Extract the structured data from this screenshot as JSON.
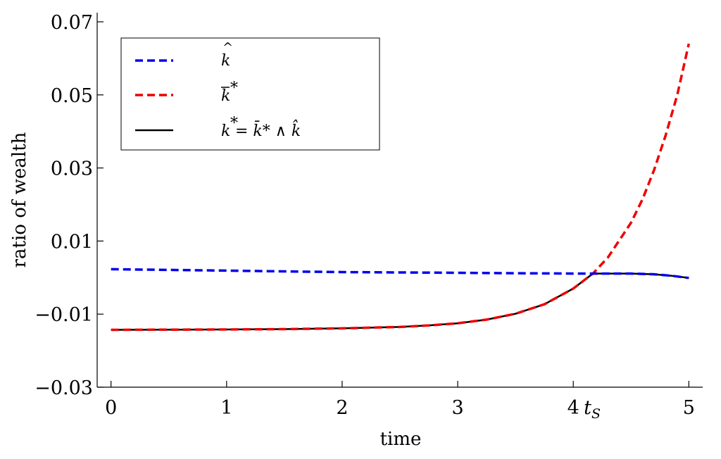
{
  "chart_data": {
    "type": "line",
    "title": "",
    "xlabel": "time",
    "ylabel": "ratio of  wealth",
    "xlim": [
      -0.12,
      5.12
    ],
    "ylim": [
      -0.03,
      0.0725
    ],
    "x_ticks": [
      0,
      1,
      2,
      3,
      4,
      5
    ],
    "x_tick_labels": [
      "0",
      "1",
      "2",
      "3",
      "4",
      "5"
    ],
    "y_ticks": [
      -0.03,
      -0.01,
      0.01,
      0.03,
      0.05,
      0.07
    ],
    "y_tick_labels": [
      "−0.03",
      "−0.01",
      "0.01",
      "0.03",
      "0.05",
      "0.07"
    ],
    "annotation": "t_S",
    "annotation_x": 4.17,
    "grid": false,
    "legend_position": "top-left",
    "series": [
      {
        "name": "k̂",
        "color": "#0000ee",
        "dash": "dashed",
        "x": [
          0,
          0.5,
          1,
          1.5,
          2,
          2.5,
          3,
          3.5,
          4,
          4.17,
          4.5,
          4.7,
          4.85,
          5
        ],
        "y": [
          0.0023,
          0.0021,
          0.0019,
          0.0017,
          0.0015,
          0.0014,
          0.0013,
          0.0012,
          0.0011,
          0.0011,
          0.0011,
          0.0009,
          0.0005,
          -0.0001
        ]
      },
      {
        "name": "k̄*",
        "color": "#ee0000",
        "dash": "dashed",
        "x": [
          0,
          1,
          1.5,
          2,
          2.5,
          2.75,
          3,
          3.25,
          3.5,
          3.75,
          4,
          4.17,
          4.3,
          4.5,
          4.6,
          4.7,
          4.8,
          4.9,
          5
        ],
        "y": [
          -0.0143,
          -0.0142,
          -0.0141,
          -0.0139,
          -0.0135,
          -0.0131,
          -0.0125,
          -0.0115,
          -0.0099,
          -0.0073,
          -0.003,
          0.0011,
          0.0055,
          0.015,
          0.0215,
          0.0295,
          0.039,
          0.05,
          0.064
        ]
      },
      {
        "name": "k* = k̄* ∧ k̂",
        "color": "#000000",
        "dash": "solid",
        "x": [
          0,
          1,
          1.5,
          2,
          2.5,
          2.75,
          3,
          3.25,
          3.5,
          3.75,
          4,
          4.17,
          4.5,
          4.7,
          4.85,
          5
        ],
        "y": [
          -0.0143,
          -0.0142,
          -0.0141,
          -0.0139,
          -0.0135,
          -0.0131,
          -0.0125,
          -0.0115,
          -0.0099,
          -0.0073,
          -0.003,
          0.0011,
          0.0011,
          0.0009,
          0.0005,
          -0.0001
        ]
      }
    ]
  },
  "legend": {
    "items": [
      {
        "label_main": "k",
        "accent": "hat",
        "sup": "",
        "rest": ""
      },
      {
        "label_main": "k",
        "accent": "bar",
        "sup": "*",
        "rest": ""
      },
      {
        "label_main": "k",
        "accent": "",
        "sup": "*",
        "rest": " = k̄* ∧ k̂"
      }
    ]
  }
}
